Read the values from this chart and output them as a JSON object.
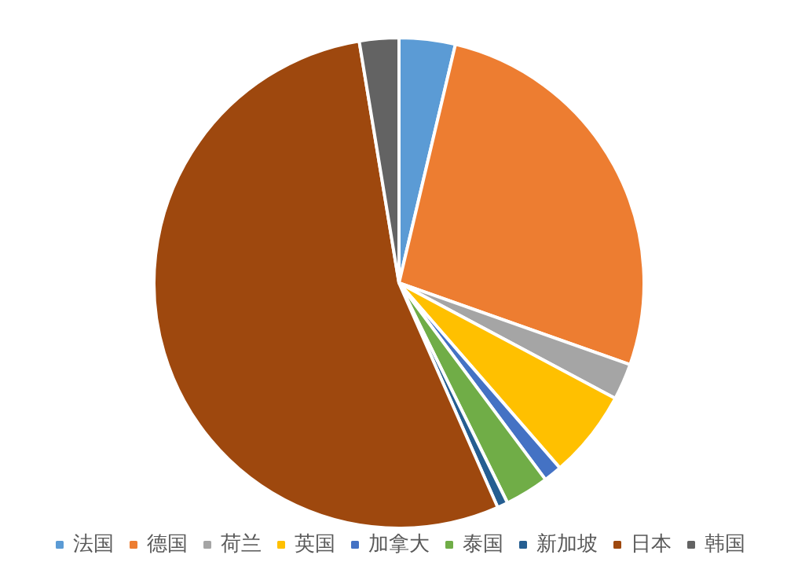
{
  "chart_data": {
    "type": "pie",
    "categories": [
      "法国",
      "德国",
      "荷兰",
      "英国",
      "加拿大",
      "泰国",
      "新加坡",
      "日本",
      "韩国"
    ],
    "values": [
      3.7,
      26.7,
      2.4,
      5.8,
      1.2,
      2.9,
      0.7,
      54.0,
      2.6
    ],
    "colors": [
      "#5b9bd5",
      "#ed7d31",
      "#a5a5a5",
      "#ffc000",
      "#4472c4",
      "#70ad47",
      "#255e91",
      "#9e480e",
      "#636363"
    ],
    "legend": "bottom"
  }
}
